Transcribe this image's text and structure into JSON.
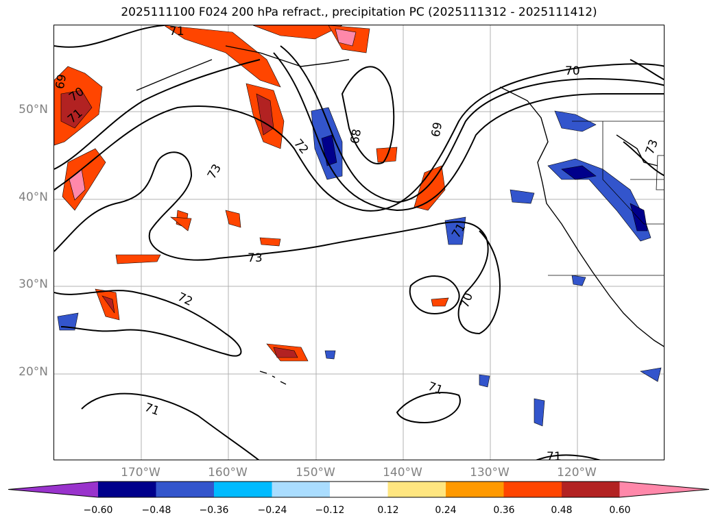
{
  "title": "2025111100 F024 200 hPa refract., precipitation PC (2025111312 - 2025111412)",
  "lat_labels": [
    "50°N",
    "40°N",
    "30°N",
    "20°N"
  ],
  "lon_labels": [
    "170°W",
    "160°W",
    "150°W",
    "140°W",
    "130°W",
    "120°W"
  ],
  "contour_labels": [
    "71",
    "69",
    "70",
    "71",
    "72",
    "73",
    "73",
    "72",
    "71",
    "68",
    "69",
    "70",
    "73",
    "71",
    "70",
    "71",
    "71"
  ],
  "colorbar": {
    "tick_labels": [
      "−0.60",
      "−0.48",
      "−0.36",
      "−0.24",
      "−0.12",
      "0.12",
      "0.24",
      "0.36",
      "0.48",
      "0.60"
    ],
    "colors": [
      "#9933cc",
      "#00008b",
      "#3355cc",
      "#00bbff",
      "#aaddff",
      "#ffffff",
      "#ffe680",
      "#ff9900",
      "#ff4500",
      "#b22222",
      "#ff88aa"
    ]
  }
}
